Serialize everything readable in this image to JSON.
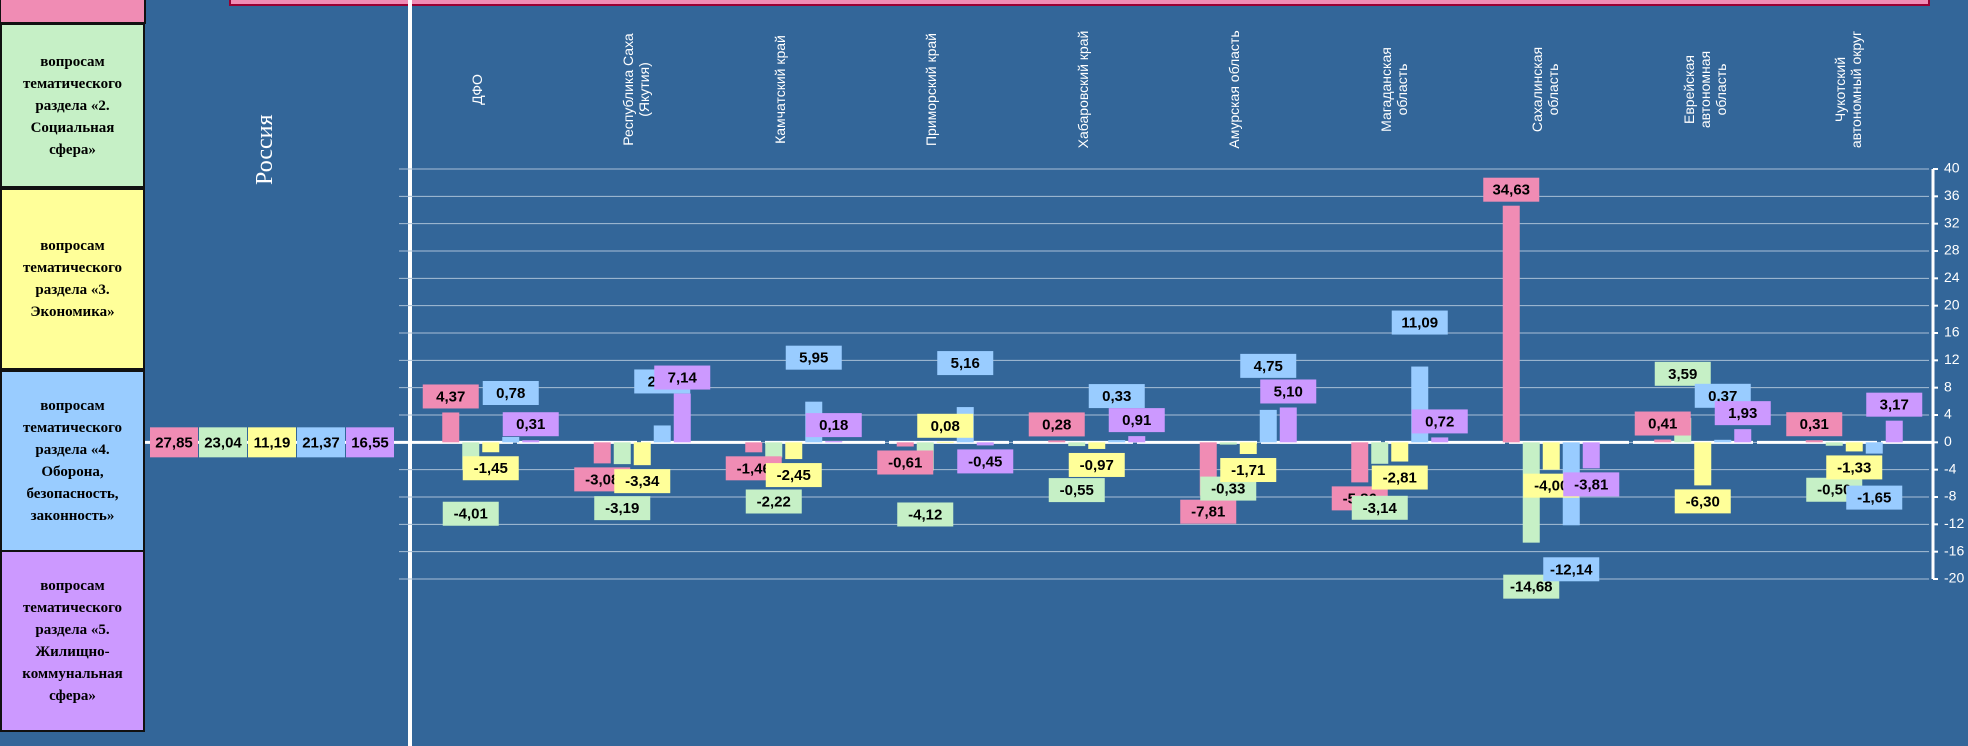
{
  "chart_data": {
    "type": "bar",
    "russia": {
      "label": "Россия",
      "values": [
        27.85,
        23.04,
        11.19,
        21.37,
        16.55
      ],
      "value_labels": [
        "27,85",
        "23,04",
        "11,19",
        "21,37",
        "16,55"
      ]
    },
    "categories": [
      "ДФО",
      "Республика Саха\n(Якутия)",
      "Камчатский край",
      "Приморский край",
      "Хабаровский край",
      "Амурская область",
      "Магаданская\nобласть",
      "Сахалинская\nобласть",
      "Еврейская\nавтономная\nобласть",
      "Чукотский\nавтономный округ"
    ],
    "series": [
      {
        "color": "#f08cb4",
        "values": [
          4.37,
          -3.08,
          -1.46,
          -0.61,
          0.28,
          -7.81,
          -5.86,
          34.63,
          0.41,
          0.31
        ],
        "value_labels": [
          "4,37",
          "-3,08",
          "-1,46",
          "-0,61",
          "0,28",
          "-7,81",
          "-5,86",
          "34,63",
          "0,41",
          "0,31"
        ]
      },
      {
        "name": "вопросам тематического раздела «2. Социальная сфера»",
        "color": "#c6f0c6",
        "values": [
          -4.01,
          -3.19,
          -2.22,
          -4.12,
          -0.55,
          -0.33,
          -3.14,
          -14.68,
          3.59,
          -0.5
        ],
        "value_labels": [
          "-4,01",
          "-3,19",
          "-2,22",
          "-4,12",
          "-0,55",
          "-0,33",
          "-3,14",
          "-14,68",
          "3,59",
          "-0,50"
        ]
      },
      {
        "name": "вопросам тематического раздела «3. Экономика»",
        "color": "#ffff99",
        "values": [
          -1.45,
          -3.34,
          -2.45,
          0.08,
          -0.97,
          -1.71,
          -2.81,
          -4.0,
          -6.3,
          -1.33
        ],
        "value_labels": [
          "-1,45",
          "-3,34",
          "-2,45",
          "0,08",
          "-0,97",
          "-1,71",
          "-2,81",
          "-4,00",
          "-6,30",
          "-1,33"
        ]
      },
      {
        "name": "вопросам тематического раздела «4. Оборона, безопасность, законность»",
        "color": "#99ccff",
        "values": [
          0.78,
          2.47,
          5.95,
          5.16,
          0.33,
          4.75,
          11.09,
          -12.14,
          0.37,
          -1.65
        ],
        "value_labels": [
          "0,78",
          "2,47",
          "5,95",
          "5,16",
          "0,33",
          "4,75",
          "11,09",
          "-12,14",
          "0,37",
          "-1,65"
        ]
      },
      {
        "name": "вопросам тематического раздела «5. Жилищно-коммунальная сфера»",
        "color": "#cc99ff",
        "values": [
          0.31,
          7.14,
          0.18,
          -0.45,
          0.91,
          5.1,
          0.72,
          -3.81,
          1.93,
          3.17
        ],
        "value_labels": [
          "0,31",
          "7,14",
          "0,18",
          "-0,45",
          "0,91",
          "5,10",
          "0,72",
          "-3,81",
          "1,93",
          "3,17"
        ]
      }
    ],
    "ylim": [
      -20,
      40
    ],
    "yticks": [
      40,
      36,
      32,
      28,
      24,
      20,
      16,
      12,
      8,
      4,
      0,
      -4,
      -8,
      -12,
      -16,
      -20
    ],
    "grid": true
  }
}
